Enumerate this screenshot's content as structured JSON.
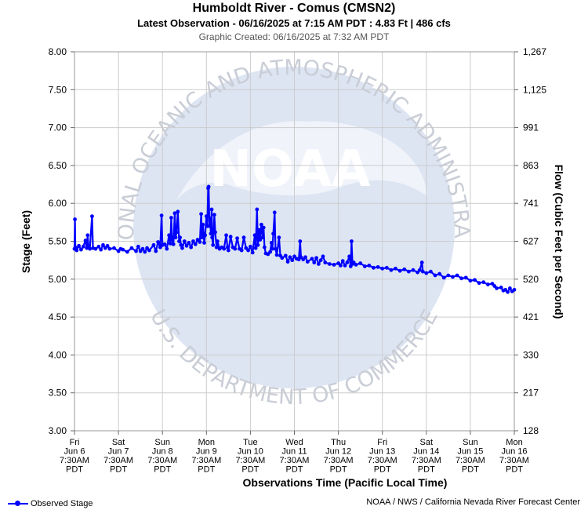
{
  "header": {
    "title": "Humboldt River - Comus (CMSN2)",
    "latest": "Latest Observation - 06/16/2025 at 7:15 AM PDT : 4.83 Ft | 486 cfs",
    "created": "Graphic Created: 06/16/2025 at 7:32 AM PDT"
  },
  "footer": {
    "legend_label": "Observed Stage",
    "credit": "NOAA / NWS / California Nevada River Forecast Center"
  },
  "watermark": {
    "logo": "NOAA",
    "ring_top": "NATIONAL OCEANIC AND ATMOSPHERIC ADMINISTRATION",
    "ring_bottom": "U.S. DEPARTMENT OF COMMERCE"
  },
  "colors": {
    "series": "#0000ff",
    "grid": "#cccccc",
    "watermark": "#dde5f3"
  },
  "chart_data": {
    "type": "line",
    "xlabel": "Observations Time (Pacific Local Time)",
    "ylabel": "Stage (Feet)",
    "y2label": "Flow (Cubic Feet per Second)",
    "ylim": [
      3.0,
      8.0
    ],
    "xlim_days": [
      0,
      10
    ],
    "y_ticks": [
      "3.00",
      "3.50",
      "4.00",
      "4.50",
      "5.00",
      "5.50",
      "6.00",
      "6.50",
      "7.00",
      "7.50",
      "8.00"
    ],
    "y2_ticks": [
      {
        "stage": 3.0,
        "label": "128"
      },
      {
        "stage": 3.5,
        "label": "217"
      },
      {
        "stage": 4.0,
        "label": "330"
      },
      {
        "stage": 4.5,
        "label": "421"
      },
      {
        "stage": 5.0,
        "label": "520"
      },
      {
        "stage": 5.5,
        "label": "627"
      },
      {
        "stage": 6.0,
        "label": "741"
      },
      {
        "stage": 6.5,
        "label": "863"
      },
      {
        "stage": 7.0,
        "label": "991"
      },
      {
        "stage": 7.5,
        "label": "1,125"
      },
      {
        "stage": 8.0,
        "label": "1,267"
      }
    ],
    "x_ticks": [
      [
        "Fri",
        "Jun 6",
        "7:30AM",
        "PDT"
      ],
      [
        "Sat",
        "Jun 7",
        "7:30AM",
        "PDT"
      ],
      [
        "Sun",
        "Jun 8",
        "7:30AM",
        "PDT"
      ],
      [
        "Mon",
        "Jun 9",
        "7:30AM",
        "PDT"
      ],
      [
        "Tue",
        "Jun 10",
        "7:30AM",
        "PDT"
      ],
      [
        "Wed",
        "Jun 11",
        "7:30AM",
        "PDT"
      ],
      [
        "Thu",
        "Jun 12",
        "7:30AM",
        "PDT"
      ],
      [
        "Fri",
        "Jun 13",
        "7:30AM",
        "PDT"
      ],
      [
        "Sat",
        "Jun 14",
        "7:30AM",
        "PDT"
      ],
      [
        "Sun",
        "Jun 15",
        "7:30AM",
        "PDT"
      ],
      [
        "Mon",
        "Jun 16",
        "7:30AM",
        "PDT"
      ]
    ],
    "grid": true,
    "series": [
      {
        "name": "Observed Stage",
        "points": [
          [
            0.0,
            5.4
          ],
          [
            0.01,
            5.79
          ],
          [
            0.02,
            5.42
          ],
          [
            0.05,
            5.38
          ],
          [
            0.1,
            5.44
          ],
          [
            0.15,
            5.39
          ],
          [
            0.2,
            5.43
          ],
          [
            0.25,
            5.51
          ],
          [
            0.28,
            5.41
          ],
          [
            0.3,
            5.58
          ],
          [
            0.32,
            5.42
          ],
          [
            0.35,
            5.4
          ],
          [
            0.4,
            5.83
          ],
          [
            0.42,
            5.41
          ],
          [
            0.48,
            5.4
          ],
          [
            0.55,
            5.43
          ],
          [
            0.6,
            5.39
          ],
          [
            0.65,
            5.45
          ],
          [
            0.7,
            5.41
          ],
          [
            0.75,
            5.44
          ],
          [
            0.8,
            5.4
          ],
          [
            0.9,
            5.41
          ],
          [
            1.0,
            5.37
          ],
          [
            1.05,
            5.4
          ],
          [
            1.1,
            5.39
          ],
          [
            1.2,
            5.36
          ],
          [
            1.3,
            5.41
          ],
          [
            1.4,
            5.37
          ],
          [
            1.45,
            5.43
          ],
          [
            1.5,
            5.37
          ],
          [
            1.55,
            5.4
          ],
          [
            1.6,
            5.36
          ],
          [
            1.65,
            5.41
          ],
          [
            1.7,
            5.38
          ],
          [
            1.8,
            5.45
          ],
          [
            1.85,
            5.37
          ],
          [
            1.9,
            5.49
          ],
          [
            1.95,
            5.42
          ],
          [
            1.98,
            5.84
          ],
          [
            2.0,
            5.45
          ],
          [
            2.05,
            5.46
          ],
          [
            2.1,
            5.4
          ],
          [
            2.15,
            5.58
          ],
          [
            2.18,
            5.47
          ],
          [
            2.2,
            5.81
          ],
          [
            2.22,
            5.52
          ],
          [
            2.25,
            5.46
          ],
          [
            2.28,
            5.87
          ],
          [
            2.3,
            5.55
          ],
          [
            2.32,
            5.62
          ],
          [
            2.35,
            5.89
          ],
          [
            2.38,
            5.5
          ],
          [
            2.4,
            5.55
          ],
          [
            2.42,
            5.45
          ],
          [
            2.45,
            5.41
          ],
          [
            2.5,
            5.5
          ],
          [
            2.55,
            5.44
          ],
          [
            2.6,
            5.48
          ],
          [
            2.65,
            5.42
          ],
          [
            2.7,
            5.5
          ],
          [
            2.75,
            5.46
          ],
          [
            2.8,
            5.52
          ],
          [
            2.85,
            5.49
          ],
          [
            2.88,
            5.86
          ],
          [
            2.9,
            5.55
          ],
          [
            2.92,
            5.72
          ],
          [
            2.95,
            5.48
          ],
          [
            2.97,
            5.58
          ],
          [
            3.0,
            5.83
          ],
          [
            3.02,
            5.7
          ],
          [
            3.04,
            6.2
          ],
          [
            3.05,
            6.22
          ],
          [
            3.07,
            5.7
          ],
          [
            3.09,
            5.8
          ],
          [
            3.1,
            5.6
          ],
          [
            3.12,
            5.92
          ],
          [
            3.13,
            5.55
          ],
          [
            3.15,
            5.45
          ],
          [
            3.18,
            5.85
          ],
          [
            3.2,
            5.62
          ],
          [
            3.23,
            5.42
          ],
          [
            3.25,
            5.5
          ],
          [
            3.3,
            5.4
          ],
          [
            3.35,
            5.42
          ],
          [
            3.4,
            5.4
          ],
          [
            3.45,
            5.58
          ],
          [
            3.48,
            5.42
          ],
          [
            3.5,
            5.38
          ],
          [
            3.55,
            5.56
          ],
          [
            3.6,
            5.42
          ],
          [
            3.65,
            5.4
          ],
          [
            3.7,
            5.54
          ],
          [
            3.75,
            5.4
          ],
          [
            3.8,
            5.38
          ],
          [
            3.85,
            5.55
          ],
          [
            3.9,
            5.41
          ],
          [
            3.95,
            5.38
          ],
          [
            4.0,
            5.43
          ],
          [
            4.05,
            5.35
          ],
          [
            4.1,
            5.58
          ],
          [
            4.12,
            5.41
          ],
          [
            4.15,
            5.92
          ],
          [
            4.17,
            5.45
          ],
          [
            4.2,
            5.65
          ],
          [
            4.22,
            5.52
          ],
          [
            4.25,
            5.72
          ],
          [
            4.28,
            5.55
          ],
          [
            4.3,
            5.68
          ],
          [
            4.32,
            5.42
          ],
          [
            4.35,
            5.34
          ],
          [
            4.4,
            5.33
          ],
          [
            4.45,
            5.36
          ],
          [
            4.48,
            5.48
          ],
          [
            4.5,
            5.4
          ],
          [
            4.52,
            5.6
          ],
          [
            4.55,
            5.88
          ],
          [
            4.57,
            5.4
          ],
          [
            4.6,
            5.32
          ],
          [
            4.65,
            5.55
          ],
          [
            4.68,
            5.31
          ],
          [
            4.72,
            5.28
          ],
          [
            4.8,
            5.31
          ],
          [
            4.85,
            5.23
          ],
          [
            4.9,
            5.29
          ],
          [
            4.95,
            5.25
          ],
          [
            5.0,
            5.3
          ],
          [
            5.05,
            5.27
          ],
          [
            5.1,
            5.26
          ],
          [
            5.13,
            5.5
          ],
          [
            5.15,
            5.29
          ],
          [
            5.2,
            5.26
          ],
          [
            5.25,
            5.29
          ],
          [
            5.3,
            5.23
          ],
          [
            5.4,
            5.27
          ],
          [
            5.45,
            5.22
          ],
          [
            5.5,
            5.28
          ],
          [
            5.55,
            5.2
          ],
          [
            5.6,
            5.25
          ],
          [
            5.65,
            5.3
          ],
          [
            5.7,
            5.22
          ],
          [
            5.8,
            5.2
          ],
          [
            5.9,
            5.19
          ],
          [
            6.0,
            5.21
          ],
          [
            6.05,
            5.18
          ],
          [
            6.1,
            5.24
          ],
          [
            6.15,
            5.18
          ],
          [
            6.2,
            5.22
          ],
          [
            6.25,
            5.3
          ],
          [
            6.28,
            5.17
          ],
          [
            6.3,
            5.5
          ],
          [
            6.32,
            5.2
          ],
          [
            6.35,
            5.22
          ],
          [
            6.4,
            5.19
          ],
          [
            6.5,
            5.21
          ],
          [
            6.6,
            5.17
          ],
          [
            6.7,
            5.18
          ],
          [
            6.8,
            5.15
          ],
          [
            6.9,
            5.16
          ],
          [
            7.0,
            5.14
          ],
          [
            7.1,
            5.15
          ],
          [
            7.2,
            5.12
          ],
          [
            7.3,
            5.14
          ],
          [
            7.4,
            5.11
          ],
          [
            7.5,
            5.13
          ],
          [
            7.6,
            5.1
          ],
          [
            7.7,
            5.12
          ],
          [
            7.8,
            5.09
          ],
          [
            7.85,
            5.12
          ],
          [
            7.9,
            5.22
          ],
          [
            7.92,
            5.1
          ],
          [
            8.0,
            5.08
          ],
          [
            8.1,
            5.1
          ],
          [
            8.2,
            5.05
          ],
          [
            8.3,
            5.07
          ],
          [
            8.4,
            5.02
          ],
          [
            8.5,
            5.05
          ],
          [
            8.6,
            5.03
          ],
          [
            8.7,
            5.05
          ],
          [
            8.8,
            5.01
          ],
          [
            8.9,
            5.02
          ],
          [
            9.0,
            4.98
          ],
          [
            9.1,
            4.99
          ],
          [
            9.2,
            4.95
          ],
          [
            9.3,
            4.96
          ],
          [
            9.4,
            4.93
          ],
          [
            9.5,
            4.94
          ],
          [
            9.55,
            4.91
          ],
          [
            9.6,
            4.88
          ],
          [
            9.7,
            4.89
          ],
          [
            9.75,
            4.85
          ],
          [
            9.8,
            4.86
          ],
          [
            9.85,
            4.83
          ],
          [
            9.9,
            4.88
          ],
          [
            9.95,
            4.84
          ],
          [
            10.0,
            4.86
          ]
        ]
      }
    ]
  }
}
